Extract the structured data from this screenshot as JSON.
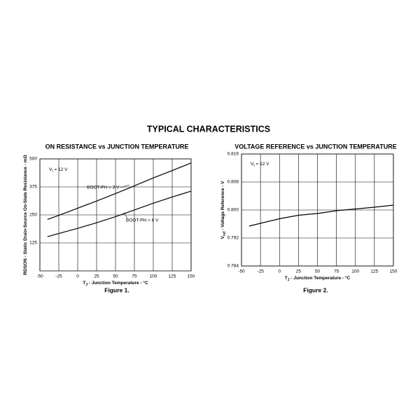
{
  "header": {
    "title": "TYPICAL CHARACTERISTICS"
  },
  "chart_data": [
    {
      "type": "line",
      "title": "ON RESISTANCE vs JUNCTION TEMPERATURE",
      "figure": "Figure 1.",
      "xlabel": [
        "T",
        "J",
        " - Junction Temperature - °C"
      ],
      "ylabel": [
        "RDSON - Static Drain-Source On-State Resistance - mΩ"
      ],
      "annotation": [
        "V",
        "I",
        " = 12 V"
      ],
      "x": [
        -40,
        -25,
        0,
        25,
        50,
        75,
        100,
        125,
        150
      ],
      "series": [
        {
          "name": "BOOT-PH = 3 V",
          "color": "#000000",
          "values": [
            230,
            248,
            280,
            312,
            345,
            380,
            415,
            448,
            482
          ]
        },
        {
          "name": "BOOT-PH = 6 V",
          "color": "#000000",
          "values": [
            153,
            167,
            190,
            215,
            242,
            272,
            302,
            330,
            356
          ]
        }
      ],
      "xlim": [
        -50,
        150
      ],
      "xticks": [
        -50,
        -25,
        0,
        25,
        50,
        75,
        100,
        125,
        150
      ],
      "ylim": [
        0,
        500
      ],
      "yticks": [
        125,
        250,
        375,
        500
      ],
      "grid": true
    },
    {
      "type": "line",
      "title": "VOLTAGE REFERENCE vs JUNCTION TEMPERATURE",
      "figure": "Figure 2.",
      "xlabel": [
        "T",
        "J",
        " - Junction Temperature - °C"
      ],
      "ylabel": [
        "V",
        "ref",
        " - Voltage Reference - V"
      ],
      "annotation": [
        "V",
        "I",
        " = 12 V"
      ],
      "x": [
        -40,
        -25,
        0,
        25,
        50,
        75,
        100,
        125,
        150
      ],
      "series": [
        {
          "color": "#000000",
          "values": [
            0.7954,
            0.7962,
            0.7975,
            0.7985,
            0.799,
            0.7998,
            0.8003,
            0.8008,
            0.8014
          ]
        }
      ],
      "xlim": [
        -50,
        150
      ],
      "xticks": [
        -50,
        -25,
        0,
        25,
        50,
        75,
        100,
        125,
        150
      ],
      "ylim": [
        0.784,
        0.816
      ],
      "yticks": [
        0.784,
        0.792,
        {
          "value": 0.8,
          "label": "0.800"
        },
        0.808,
        0.816
      ],
      "grid": true
    }
  ]
}
